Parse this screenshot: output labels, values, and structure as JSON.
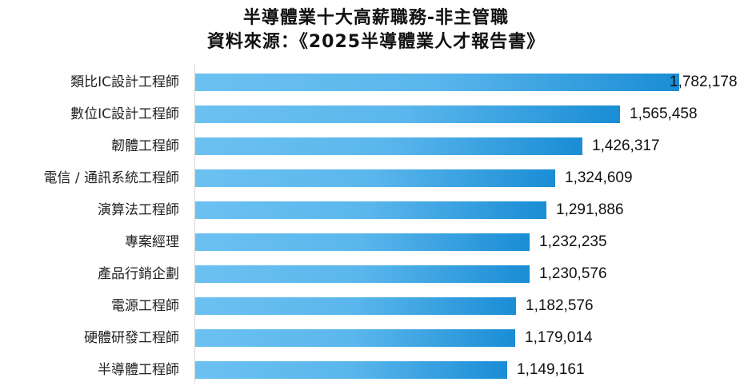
{
  "title_line1": "半導體業十大高薪職務-非主管職",
  "title_line2": "資料來源：《2025半導體業人才報告書》",
  "colors": {
    "bar_start": "#6cc1f1",
    "bar_end": "#1a8dd5",
    "axis": "#d9d9d9"
  },
  "rows": [
    {
      "label": "類比IC設計工程師",
      "value": 1782178,
      "display": "1,782,178"
    },
    {
      "label": "數位IC設計工程師",
      "value": 1565458,
      "display": "1,565,458"
    },
    {
      "label": "韌體工程師",
      "value": 1426317,
      "display": "1,426,317"
    },
    {
      "label": "電信 / 通訊系統工程師",
      "value": 1324609,
      "display": "1,324,609"
    },
    {
      "label": "演算法工程師",
      "value": 1291886,
      "display": "1,291,886"
    },
    {
      "label": "專案經理",
      "value": 1232235,
      "display": "1,232,235"
    },
    {
      "label": "產品行銷企劃",
      "value": 1230576,
      "display": "1,230,576"
    },
    {
      "label": "電源工程師",
      "value": 1182576,
      "display": "1,182,576"
    },
    {
      "label": "硬體研發工程師",
      "value": 1179014,
      "display": "1,179,014"
    },
    {
      "label": "半導體工程師",
      "value": 1149161,
      "display": "1,149,161"
    }
  ],
  "chart_data": {
    "type": "bar",
    "orientation": "horizontal",
    "title": "半導體業十大高薪職務-非主管職",
    "subtitle": "資料來源：《2025半導體業人才報告書》",
    "categories": [
      "類比IC設計工程師",
      "數位IC設計工程師",
      "韌體工程師",
      "電信 / 通訊系統工程師",
      "演算法工程師",
      "專案經理",
      "產品行銷企劃",
      "電源工程師",
      "硬體研發工程師",
      "半導體工程師"
    ],
    "values": [
      1782178,
      1565458,
      1426317,
      1324609,
      1291886,
      1232235,
      1230576,
      1182576,
      1179014,
      1149161
    ],
    "xlabel": "",
    "ylabel": "",
    "data_labels": true,
    "grid": false,
    "legend": "none",
    "xlim": [
      0,
      1782178
    ]
  }
}
